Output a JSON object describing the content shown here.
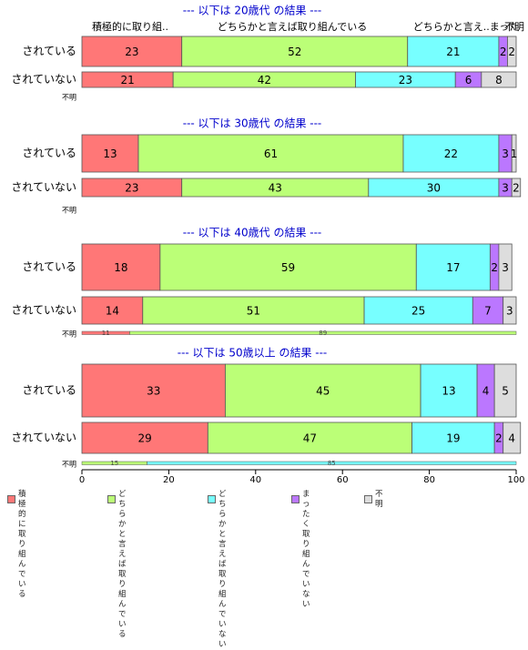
{
  "chart_data": {
    "type": "bar",
    "orientation": "horizontal",
    "stacked": true,
    "xlim": [
      0,
      100
    ],
    "xticks": [
      "0",
      "20",
      "40",
      "60",
      "80",
      "100"
    ],
    "categories_legend": [
      "積極的に\n取り組んでいる",
      "どちらかと言えば\n取り組んでいる",
      "どちらかと言えば\n取り組んでいない",
      "まったく\n取り組んでいない",
      "不明"
    ],
    "colors": [
      "#FF7777",
      "#BBFF77",
      "#77FFFF",
      "#BB77FF",
      "#DDDDDD"
    ],
    "column_headers": [
      "積極的に取り組..",
      "どちらかと言えば取り組んでいる",
      "どちらかと言え..まった",
      "不明"
    ],
    "panels": [
      {
        "title": "--- 以下は 20歳代 の結果 ---",
        "rows": [
          {
            "label": "されている",
            "values": [
              23,
              52,
              21,
              2,
              2
            ]
          },
          {
            "label": "されていない",
            "values": [
              21,
              42,
              23,
              6,
              8
            ]
          }
        ],
        "unknown": {
          "label": "不明",
          "values": []
        }
      },
      {
        "title": "--- 以下は 30歳代 の結果 ---",
        "rows": [
          {
            "label": "されている",
            "values": [
              13,
              61,
              22,
              3,
              1
            ]
          },
          {
            "label": "されていない",
            "values": [
              23,
              43,
              30,
              3,
              2
            ]
          }
        ],
        "unknown": {
          "label": "不明",
          "values": []
        }
      },
      {
        "title": "--- 以下は 40歳代 の結果 ---",
        "rows": [
          {
            "label": "されている",
            "values": [
              18,
              59,
              17,
              2,
              3
            ]
          },
          {
            "label": "されていない",
            "values": [
              14,
              51,
              25,
              7,
              3
            ]
          }
        ],
        "unknown": {
          "label": "不明",
          "values": [
            11,
            89,
            0,
            0,
            0
          ]
        }
      },
      {
        "title": "--- 以下は 50歳以上 の結果 ---",
        "rows": [
          {
            "label": "されている",
            "values": [
              33,
              45,
              13,
              4,
              5
            ]
          },
          {
            "label": "されていない",
            "values": [
              29,
              47,
              19,
              2,
              4
            ]
          }
        ],
        "unknown": {
          "label": "不明",
          "values": [
            0,
            15,
            85,
            0,
            0
          ]
        }
      }
    ]
  }
}
